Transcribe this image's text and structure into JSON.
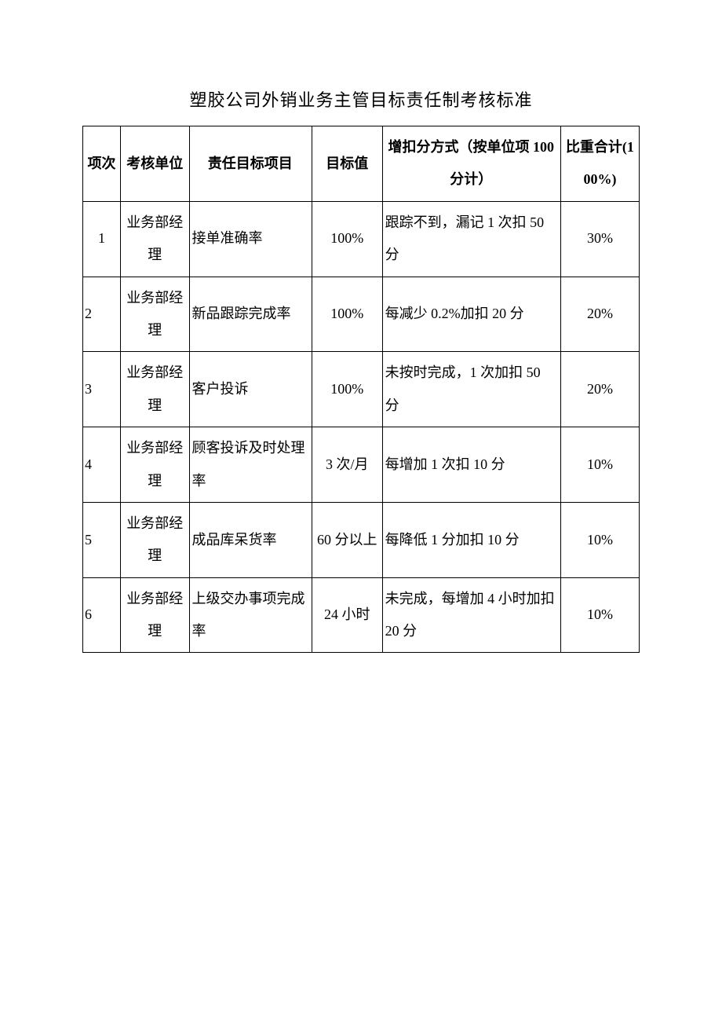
{
  "title": "塑胶公司外销业务主管目标责任制考核标准",
  "table": {
    "headers": {
      "idx": "项次",
      "unit": "考核单位",
      "project": "责任目标项目",
      "target": "目标值",
      "method": "增扣分方式（按单位项 100 分计）",
      "weight": "比重合计(100%)"
    },
    "rows": [
      {
        "idx": "1",
        "idx_align": "center",
        "unit": "业务部经理",
        "project": "接单准确率",
        "target": "100%",
        "method": "跟踪不到，漏记 1 次扣 50 分",
        "weight": "30%"
      },
      {
        "idx": "2",
        "idx_align": "left",
        "unit": "业务部经理",
        "project": "新品跟踪完成率",
        "target": "100%",
        "method": "每减少 0.2%加扣 20 分",
        "weight": "20%"
      },
      {
        "idx": "3",
        "idx_align": "left",
        "unit": "业务部经理",
        "project": "客户投诉",
        "target": "100%",
        "method": "未按时完成，1 次加扣 50 分",
        "weight": "20%"
      },
      {
        "idx": "4",
        "idx_align": "left",
        "unit": "业务部经理",
        "project": "顾客投诉及时处理率",
        "target": "3 次/月",
        "method": "每增加 1 次扣 10 分",
        "weight": "10%"
      },
      {
        "idx": "5",
        "idx_align": "left",
        "unit": "业务部经理",
        "project": "成品库呆货率",
        "target": "60 分以上",
        "method": "每降低 1 分加扣 10 分",
        "weight": "10%"
      },
      {
        "idx": "6",
        "idx_align": "left",
        "unit": "业务部经理",
        "project": "上级交办事项完成率",
        "target": "24 小时",
        "method": "未完成，每增加 4 小时加扣 20 分",
        "weight": "10%"
      }
    ]
  }
}
